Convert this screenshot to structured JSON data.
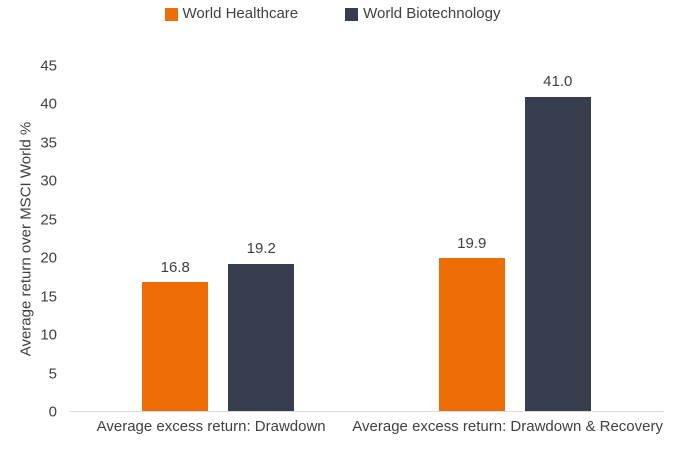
{
  "chart_data": {
    "type": "bar",
    "categories": [
      "Average excess return: Drawdown",
      "Average excess return: Drawdown & Recovery"
    ],
    "series": [
      {
        "name": "World Healthcare",
        "color": "#ED6C05",
        "values": [
          16.8,
          19.9
        ]
      },
      {
        "name": "World Biotechnology",
        "color": "#373E4E",
        "values": [
          19.2,
          41.0
        ]
      }
    ],
    "title": "",
    "xlabel": "",
    "ylabel": "Average return over MSCI World %",
    "ylim": [
      0,
      45
    ],
    "yticks": [
      0,
      5,
      10,
      15,
      20,
      25,
      30,
      35,
      40,
      45
    ],
    "grid": false,
    "legend_position": "top",
    "value_label_decimals": 1
  },
  "colors": {
    "text": "#404040",
    "axis-line": "#D9D9D9",
    "background": "#FFFFFF"
  }
}
